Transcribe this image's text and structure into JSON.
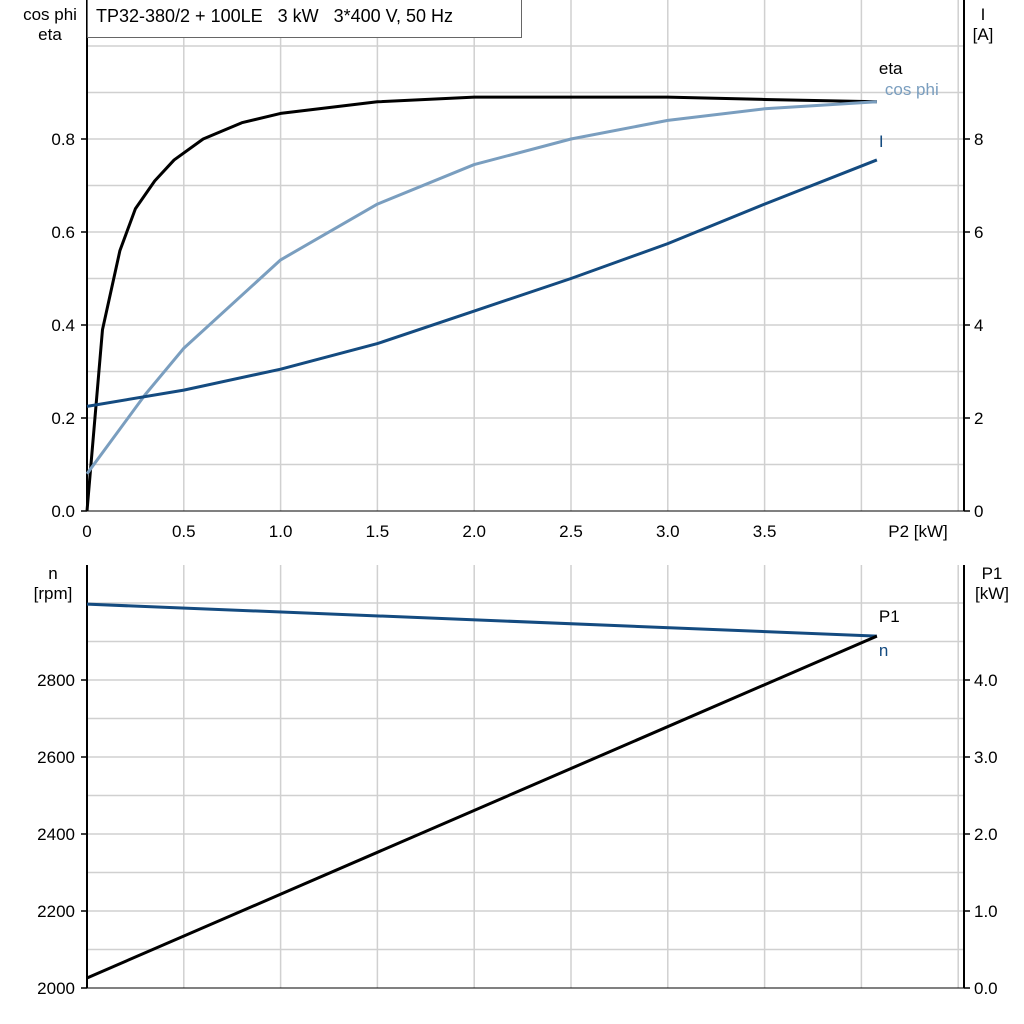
{
  "title": "TP32-380/2 + 100LE   3 kW   3*400 V, 50 Hz",
  "chart_data": [
    {
      "type": "line",
      "xlabel": "P2 [kW]",
      "ylabel_left": [
        "cos phi",
        "eta"
      ],
      "ylabel_right": [
        "I",
        "[A]"
      ],
      "xlim": [
        0,
        4.53
      ],
      "ylim_left": [
        0,
        1.1
      ],
      "ylim_right": [
        0,
        11
      ],
      "xticks": [
        "0",
        "0.5",
        "1.0",
        "1.5",
        "2.0",
        "2.5",
        "3.0",
        "3.5"
      ],
      "yticks_left": [
        "0.0",
        "0.2",
        "0.4",
        "0.6",
        "0.8"
      ],
      "yticks_right": [
        "0",
        "2",
        "4",
        "6",
        "8"
      ],
      "grid": true,
      "series": [
        {
          "name": "eta",
          "axis": "left",
          "color": "#000000",
          "x": [
            0,
            0.08,
            0.17,
            0.25,
            0.35,
            0.45,
            0.6,
            0.8,
            1.0,
            1.5,
            2.0,
            2.5,
            3.0,
            3.5,
            4.08
          ],
          "y": [
            0,
            0.39,
            0.56,
            0.65,
            0.71,
            0.755,
            0.8,
            0.835,
            0.855,
            0.88,
            0.89,
            0.89,
            0.89,
            0.885,
            0.88
          ]
        },
        {
          "name": "cos phi",
          "axis": "left",
          "color": "#7a9ebf",
          "x": [
            0,
            0.3,
            0.5,
            1.0,
            1.5,
            2.0,
            2.5,
            3.0,
            3.5,
            4.08
          ],
          "y": [
            0.08,
            0.25,
            0.35,
            0.54,
            0.66,
            0.745,
            0.8,
            0.84,
            0.865,
            0.88
          ]
        },
        {
          "name": "I",
          "axis": "right",
          "color": "#144b80",
          "x": [
            0,
            0.5,
            1.0,
            1.5,
            2.0,
            2.5,
            3.0,
            3.5,
            4.08
          ],
          "y": [
            2.25,
            2.6,
            3.05,
            3.6,
            4.3,
            5.0,
            5.75,
            6.6,
            7.55
          ]
        }
      ]
    },
    {
      "type": "line",
      "ylabel_left": [
        "n",
        "[rpm]"
      ],
      "ylabel_right": [
        "P1",
        "[kW]"
      ],
      "xlim": [
        0,
        4.53
      ],
      "ylim_left": [
        2000,
        3100
      ],
      "ylim_right": [
        0,
        5.5
      ],
      "yticks_left": [
        "2000",
        "2200",
        "2400",
        "2600",
        "2800"
      ],
      "yticks_right": [
        "0.0",
        "1.0",
        "2.0",
        "3.0",
        "4.0"
      ],
      "grid": true,
      "series": [
        {
          "name": "n",
          "axis": "left",
          "color": "#144b80",
          "x": [
            0,
            4.08
          ],
          "y": [
            2997,
            2914
          ]
        },
        {
          "name": "P1",
          "axis": "right",
          "color": "#000000",
          "x": [
            0,
            4.08
          ],
          "y": [
            0.13,
            4.57
          ]
        }
      ]
    }
  ]
}
